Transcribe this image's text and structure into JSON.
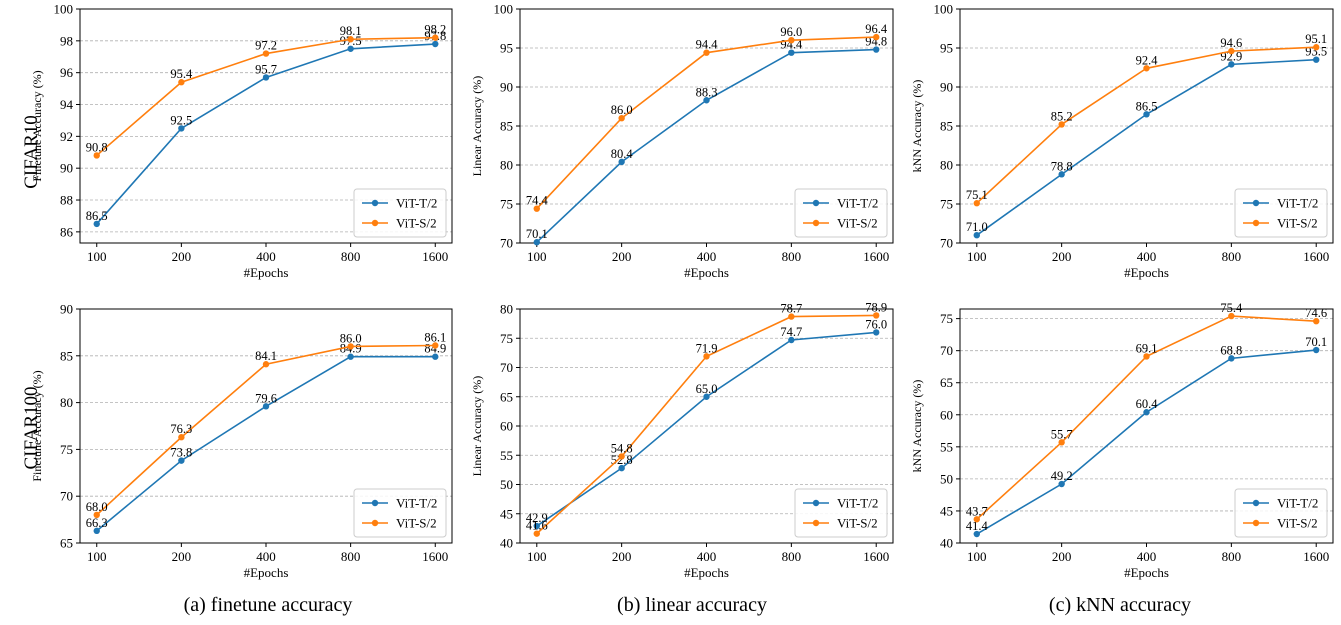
{
  "row_labels": [
    "CIFAR10",
    "CIFAR100"
  ],
  "captions": [
    "(a) finetune accuracy",
    "(b) linear accuracy",
    "(c) kNN accuracy"
  ],
  "colors": {
    "ViT-T/2": "#1f77b4",
    "ViT-S/2": "#ff7f0e",
    "grid": "#b0b0b0",
    "axis": "#000000"
  },
  "chart_data": [
    {
      "type": "line",
      "dataset": "CIFAR10",
      "x": [
        "100",
        "200",
        "400",
        "800",
        "1600"
      ],
      "xlabel": "#Epochs",
      "ylabel": "Finetune Accuracy (%)",
      "ylim": [
        85.3,
        100
      ],
      "yticks": [
        86,
        88,
        90,
        92,
        94,
        96,
        98,
        100
      ],
      "grid": "horizontal dashed",
      "legend": "bottom-right",
      "series": [
        {
          "name": "ViT-T/2",
          "values": [
            86.5,
            92.5,
            95.7,
            97.5,
            97.8
          ],
          "labels": [
            "86.5",
            "92.5",
            "95.7",
            "97.5",
            "97.8"
          ]
        },
        {
          "name": "ViT-S/2",
          "values": [
            90.8,
            95.4,
            97.2,
            98.1,
            98.2
          ],
          "labels": [
            "90.8",
            "95.4",
            "97.2",
            "98.1",
            "98.2"
          ]
        }
      ]
    },
    {
      "type": "line",
      "dataset": "CIFAR10",
      "x": [
        "100",
        "200",
        "400",
        "800",
        "1600"
      ],
      "xlabel": "#Epochs",
      "ylabel": "Linear Accuracy (%)",
      "ylim": [
        70,
        100
      ],
      "yticks": [
        70,
        75,
        80,
        85,
        90,
        95,
        100
      ],
      "grid": "horizontal dashed",
      "legend": "bottom-right",
      "series": [
        {
          "name": "ViT-T/2",
          "values": [
            70.1,
            80.4,
            88.3,
            94.4,
            94.8
          ],
          "labels": [
            "70.1",
            "80.4",
            "88.3",
            "94.4",
            "94.8"
          ]
        },
        {
          "name": "ViT-S/2",
          "values": [
            74.4,
            86.0,
            94.4,
            96.0,
            96.4
          ],
          "labels": [
            "74.4",
            "86.0",
            "94.4",
            "96.0",
            "96.4"
          ]
        }
      ]
    },
    {
      "type": "line",
      "dataset": "CIFAR10",
      "x": [
        "100",
        "200",
        "400",
        "800",
        "1600"
      ],
      "xlabel": "#Epochs",
      "ylabel": "kNN Accuracy (%)",
      "ylim": [
        70,
        100
      ],
      "yticks": [
        70,
        75,
        80,
        85,
        90,
        95,
        100
      ],
      "grid": "horizontal dashed",
      "legend": "bottom-right",
      "series": [
        {
          "name": "ViT-T/2",
          "values": [
            71.0,
            78.8,
            86.5,
            92.9,
            93.5
          ],
          "labels": [
            "71.0",
            "78.8",
            "86.5",
            "92.9",
            "93.5"
          ]
        },
        {
          "name": "ViT-S/2",
          "values": [
            75.1,
            85.2,
            92.4,
            94.6,
            95.1
          ],
          "labels": [
            "75.1",
            "85.2",
            "92.4",
            "94.6",
            "95.1"
          ]
        }
      ]
    },
    {
      "type": "line",
      "dataset": "CIFAR100",
      "x": [
        "100",
        "200",
        "400",
        "800",
        "1600"
      ],
      "xlabel": "#Epochs",
      "ylabel": "Finetune Accuracy (%)",
      "ylim": [
        65,
        90
      ],
      "yticks": [
        65,
        70,
        75,
        80,
        85,
        90
      ],
      "grid": "horizontal dashed",
      "legend": "bottom-right",
      "series": [
        {
          "name": "ViT-T/2",
          "values": [
            66.3,
            73.8,
            79.6,
            84.9,
            84.9
          ],
          "labels": [
            "66.3",
            "73.8",
            "79.6",
            "84.9",
            "84.9"
          ]
        },
        {
          "name": "ViT-S/2",
          "values": [
            68.0,
            76.3,
            84.1,
            86.0,
            86.1
          ],
          "labels": [
            "68.0",
            "76.3",
            "84.1",
            "86.0",
            "86.1"
          ]
        }
      ]
    },
    {
      "type": "line",
      "dataset": "CIFAR100",
      "x": [
        "100",
        "200",
        "400",
        "800",
        "1600"
      ],
      "xlabel": "#Epochs",
      "ylabel": "Linear Accuracy (%)",
      "ylim": [
        40,
        80
      ],
      "yticks": [
        40,
        45,
        50,
        55,
        60,
        65,
        70,
        75,
        80
      ],
      "grid": "horizontal dashed",
      "legend": "bottom-right",
      "series": [
        {
          "name": "ViT-T/2",
          "values": [
            42.9,
            52.8,
            65.0,
            74.7,
            76.0
          ],
          "labels": [
            "42.9",
            "52.8",
            "65.0",
            "74.7",
            "76.0"
          ]
        },
        {
          "name": "ViT-S/2",
          "values": [
            41.6,
            54.8,
            71.9,
            78.7,
            78.9
          ],
          "labels": [
            "41.6",
            "54.8",
            "71.9",
            "78.7",
            "78.9"
          ]
        }
      ]
    },
    {
      "type": "line",
      "dataset": "CIFAR100",
      "x": [
        "100",
        "200",
        "400",
        "800",
        "1600"
      ],
      "xlabel": "#Epochs",
      "ylabel": "kNN Accuracy (%)",
      "ylim": [
        40,
        76.5
      ],
      "yticks": [
        40,
        45,
        50,
        55,
        60,
        65,
        70,
        75
      ],
      "grid": "horizontal dashed",
      "legend": "bottom-right",
      "series": [
        {
          "name": "ViT-T/2",
          "values": [
            41.4,
            49.2,
            60.4,
            68.8,
            70.1
          ],
          "labels": [
            "41.4",
            "49.2",
            "60.4",
            "68.8",
            "70.1"
          ]
        },
        {
          "name": "ViT-S/2",
          "values": [
            43.7,
            55.7,
            69.1,
            75.4,
            74.6
          ],
          "labels": [
            "43.7",
            "55.7",
            "69.1",
            "75.4",
            "74.6"
          ]
        }
      ]
    }
  ]
}
